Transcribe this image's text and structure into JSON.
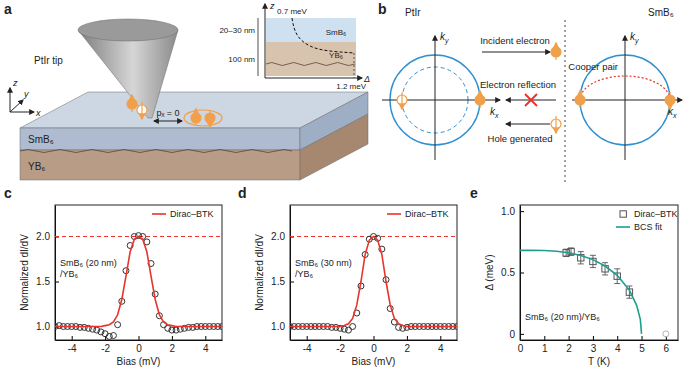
{
  "chart_data": [
    {
      "type": "line",
      "title": "c",
      "x": [
        -5,
        -4.75,
        -4.5,
        -4.25,
        -4,
        -3.75,
        -3.5,
        -3.25,
        -3,
        -2.75,
        -2.5,
        -2.25,
        -2,
        -1.75,
        -1.5,
        -1.25,
        -1,
        -0.75,
        -0.5,
        -0.25,
        0,
        0.25,
        0.5,
        0.75,
        1,
        1.25,
        1.5,
        1.75,
        2,
        2.25,
        2.5,
        2.75,
        3,
        3.25,
        3.5,
        3.75,
        4,
        4.25,
        4.5,
        4.75,
        5
      ],
      "series": [
        {
          "type": "scatter",
          "marker": "circle",
          "color": "#333333",
          "values": [
            1.0,
            1.01,
            1.0,
            1.0,
            1.0,
            1.0,
            0.99,
            0.99,
            0.98,
            0.97,
            0.96,
            0.94,
            0.92,
            0.89,
            0.9,
            1.02,
            1.28,
            1.62,
            1.9,
            2.0,
            2.01,
            2.0,
            1.94,
            1.7,
            1.36,
            1.12,
            1.02,
            0.98,
            0.96,
            0.96,
            0.97,
            0.98,
            0.99,
            0.99,
            1.0,
            1.0,
            1.0,
            1.0,
            1.0,
            1.0,
            1.0
          ]
        },
        {
          "name": "Dirac–BTK",
          "type": "line",
          "line_style": "solid",
          "color": "#e8342c",
          "values": [
            1,
            1,
            1,
            1,
            1,
            1,
            1,
            1,
            1,
            1,
            1,
            1,
            1.01,
            1.02,
            1.05,
            1.13,
            1.3,
            1.56,
            1.83,
            1.97,
            2.0,
            1.97,
            1.83,
            1.56,
            1.3,
            1.13,
            1.05,
            1.02,
            1.01,
            1,
            1,
            1,
            1,
            1,
            1,
            1,
            1,
            1,
            1,
            1,
            1
          ]
        }
      ],
      "xlim": [
        -5,
        5
      ],
      "ylim": [
        0.85,
        2.35
      ],
      "xticks": [
        -4,
        -2,
        0,
        2,
        4
      ],
      "yticks": [
        {
          "value": 1,
          "label": "1.0"
        },
        1.5,
        {
          "value": 2,
          "label": "2.0"
        }
      ],
      "xlabel": "Bias (mV)",
      "ylabel": "Normalized dI/dV",
      "annotation": [
        "SmB₆ (20 nm)",
        "/YB₆"
      ],
      "reference_lines": [
        2
      ],
      "legend": "upper right"
    },
    {
      "type": "line",
      "title": "d",
      "x": [
        -5,
        -4.75,
        -4.5,
        -4.25,
        -4,
        -3.75,
        -3.5,
        -3.25,
        -3,
        -2.75,
        -2.5,
        -2.25,
        -2,
        -1.75,
        -1.5,
        -1.25,
        -1,
        -0.75,
        -0.5,
        -0.25,
        0,
        0.25,
        0.5,
        0.75,
        1,
        1.25,
        1.5,
        1.75,
        2,
        2.25,
        2.5,
        2.75,
        3,
        3.25,
        3.5,
        3.75,
        4,
        4.25,
        4.5,
        4.75,
        5
      ],
      "series": [
        {
          "type": "scatter",
          "marker": "circle",
          "color": "#333333",
          "values": [
            1.0,
            1.0,
            1.0,
            1.0,
            1.0,
            1.0,
            1.0,
            1.0,
            1.0,
            1.0,
            0.99,
            0.99,
            0.98,
            0.97,
            0.96,
            1.0,
            1.15,
            1.45,
            1.8,
            1.97,
            2.0,
            1.98,
            1.86,
            1.52,
            1.2,
            1.05,
            0.99,
            0.98,
            0.99,
            1.0,
            1.0,
            1.0,
            1.0,
            1.0,
            1.0,
            1.0,
            1.0,
            1.0,
            1.0,
            1.0,
            1.0
          ]
        },
        {
          "name": "Dirac–BTK",
          "type": "line",
          "line_style": "solid",
          "color": "#e8342c",
          "values": [
            1,
            1,
            1,
            1,
            1,
            1,
            1,
            1,
            1,
            1,
            1,
            1,
            1,
            1.01,
            1.03,
            1.09,
            1.24,
            1.5,
            1.8,
            1.96,
            2.0,
            1.96,
            1.8,
            1.5,
            1.24,
            1.09,
            1.03,
            1.01,
            1,
            1,
            1,
            1,
            1,
            1,
            1,
            1,
            1,
            1,
            1,
            1,
            1
          ]
        }
      ],
      "xlim": [
        -5,
        5
      ],
      "ylim": [
        0.85,
        2.35
      ],
      "xticks": [
        -4,
        -2,
        0,
        2,
        4
      ],
      "yticks": [
        {
          "value": 1,
          "label": "1.0"
        },
        1.5,
        {
          "value": 2,
          "label": "2.0"
        }
      ],
      "xlabel": "Bias (mV)",
      "ylabel": "Normalized dI/dV",
      "annotation": [
        "SmB₆ (30 nm)",
        "/YB₆"
      ],
      "reference_lines": [
        2
      ],
      "legend": "upper right"
    },
    {
      "type": "scatter",
      "title": "e",
      "series": [
        {
          "name": "Dirac–BTK",
          "type": "scatter",
          "marker": "square",
          "color": "#555555",
          "x": [
            1.9,
            2.1,
            2.5,
            3.0,
            3.5,
            4.0,
            4.5
          ],
          "values": [
            0.66,
            0.67,
            0.62,
            0.59,
            0.53,
            0.47,
            0.34
          ],
          "errors": [
            0.03,
            0.03,
            0.05,
            0.05,
            0.05,
            0.06,
            0.05
          ]
        },
        {
          "type": "scatter",
          "marker": "circle",
          "color": "#b5b5b5",
          "x": [
            6
          ],
          "values": [
            0
          ]
        },
        {
          "name": "BCS fit",
          "type": "line",
          "line_style": "solid",
          "color": "#1f9e8e",
          "x": [
            0,
            0.5,
            1,
            1.5,
            2,
            2.5,
            3,
            3.5,
            4,
            4.5,
            4.8,
            4.95,
            5
          ],
          "values": [
            0.68,
            0.68,
            0.679,
            0.673,
            0.661,
            0.639,
            0.605,
            0.553,
            0.477,
            0.356,
            0.232,
            0.118,
            0
          ]
        }
      ],
      "xlim": [
        0,
        6.5
      ],
      "ylim": [
        -0.05,
        1.05
      ],
      "xticks": [
        0,
        1,
        2,
        3,
        4,
        5,
        6
      ],
      "yticks": [
        0,
        0.5,
        {
          "value": 1,
          "label": "1.0"
        }
      ],
      "xlabel": "T (K)",
      "ylabel": "Δ (meV)",
      "annotation": [
        "SmB₆ (20 nm)/YB₆"
      ],
      "legend": "upper right"
    }
  ],
  "diagram": {
    "panel_a": {
      "label": "a",
      "tip": "PtIr tip",
      "top_layer": "SmB₆",
      "bottom_layer": "YB₆",
      "axes": [
        "x",
        "y",
        "z"
      ],
      "momentum": "pₓ = 0",
      "inset": {
        "axis_vertical": "z",
        "axis_horizontal": "Δ",
        "top_layer": "SmB₆",
        "bottom_layer": "YB₆",
        "top_thickness": "20–30 nm",
        "bottom_thickness": "100 nm",
        "top_gap": "0.7 meV",
        "bottom_gap": "1.2 meV"
      }
    },
    "panel_b": {
      "label": "b",
      "left": "PtIr",
      "right": "SmB₆",
      "axis_labels": {
        "ky": {
          "base": "k",
          "sub": "y"
        },
        "kx": {
          "base": "k",
          "sub": "x"
        }
      },
      "processes": [
        "Incident electron",
        "Electron reflection",
        "Hole generated",
        "Cooper pair"
      ]
    }
  }
}
